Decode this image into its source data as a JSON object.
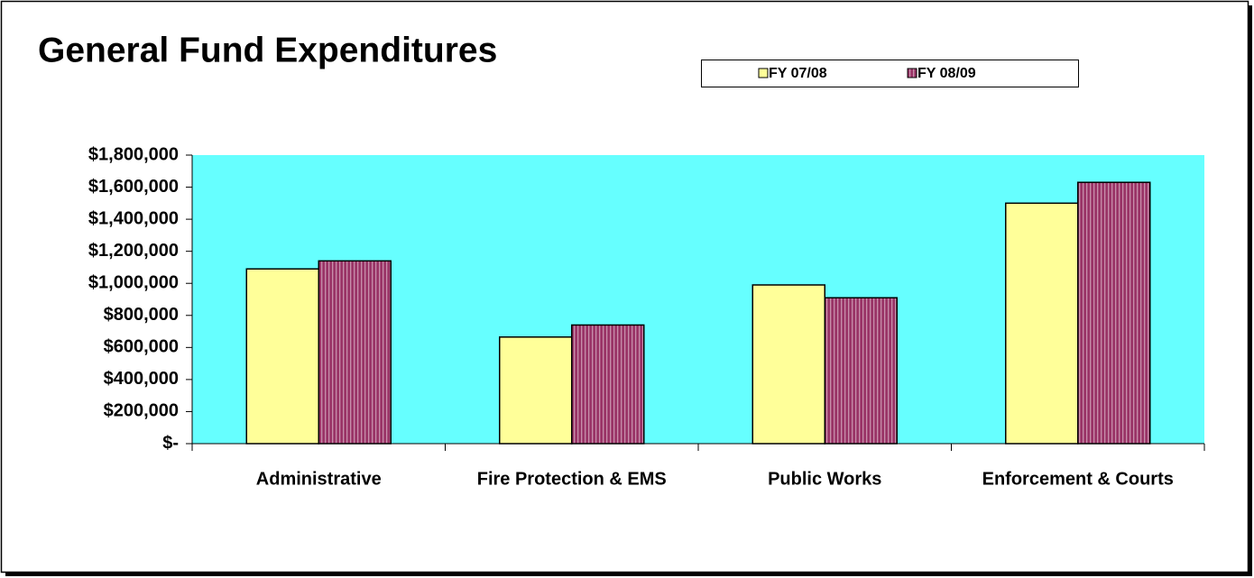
{
  "chart_data": {
    "type": "bar",
    "title": "General Fund Expenditures",
    "categories": [
      "Administrative",
      "Fire Protection & EMS",
      "Public Works",
      "Enforcement & Courts"
    ],
    "series": [
      {
        "name": "FY 07/08",
        "color": "#ffff99",
        "values": [
          1090000,
          665000,
          990000,
          1500000
        ]
      },
      {
        "name": "FY 08/09",
        "color": "#993366",
        "values": [
          1140000,
          740000,
          910000,
          1630000
        ]
      }
    ],
    "ylim": [
      0,
      1800000
    ],
    "yticks": [
      {
        "value": 0,
        "label": "$-"
      },
      {
        "value": 200000,
        "label": "$200,000"
      },
      {
        "value": 400000,
        "label": "$400,000"
      },
      {
        "value": 600000,
        "label": "$600,000"
      },
      {
        "value": 800000,
        "label": "$800,000"
      },
      {
        "value": 1000000,
        "label": "$1,000,000"
      },
      {
        "value": 1200000,
        "label": "$1,200,000"
      },
      {
        "value": 1400000,
        "label": "$1,400,000"
      },
      {
        "value": 1600000,
        "label": "$1,600,000"
      },
      {
        "value": 1800000,
        "label": "$1,800,000"
      }
    ],
    "plot_background": "#66ffff",
    "legend": "top"
  }
}
